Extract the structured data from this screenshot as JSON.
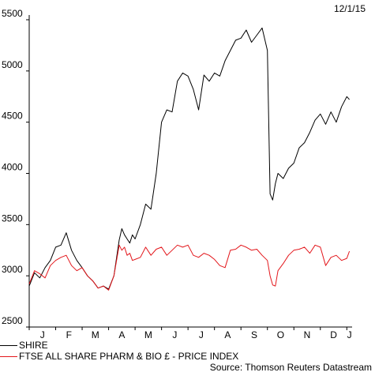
{
  "date_label": "12/1/15",
  "source": "Source: Thomson Reuters Datastream",
  "chart_data": {
    "type": "line",
    "x_tick_labels": [
      "J",
      "F",
      "M",
      "A",
      "M",
      "J",
      "J",
      "A",
      "S",
      "O",
      "N",
      "D",
      "J"
    ],
    "y_ticks": [
      2500,
      3000,
      3500,
      4000,
      4500,
      5000,
      5500
    ],
    "ylim": [
      2500,
      5500
    ],
    "grid": false,
    "legend_placement": "bottom-left",
    "x_unit": "months from start of year",
    "series": [
      {
        "name": "SHIRE",
        "color": "#000000",
        "x": [
          0,
          0.2,
          0.4,
          0.6,
          0.8,
          1.0,
          1.2,
          1.4,
          1.6,
          1.8,
          2.0,
          2.2,
          2.4,
          2.6,
          2.8,
          3.0,
          3.2,
          3.4,
          3.5,
          3.6,
          3.7,
          3.8,
          3.9,
          4.0,
          4.2,
          4.4,
          4.6,
          4.8,
          5.0,
          5.2,
          5.4,
          5.6,
          5.8,
          6.0,
          6.2,
          6.4,
          6.6,
          6.8,
          7.0,
          7.2,
          7.4,
          7.6,
          7.8,
          8.0,
          8.2,
          8.4,
          8.6,
          8.8,
          9.0,
          9.1,
          9.2,
          9.3,
          9.4,
          9.6,
          9.8,
          10.0,
          10.2,
          10.4,
          10.6,
          10.8,
          11.0,
          11.2,
          11.4,
          11.6,
          11.8,
          12.0,
          12.1
        ],
        "values": [
          2900,
          3030,
          2980,
          3080,
          3150,
          3280,
          3300,
          3420,
          3250,
          3150,
          3080,
          3000,
          2950,
          2880,
          2900,
          2870,
          3000,
          3350,
          3460,
          3400,
          3360,
          3320,
          3400,
          3360,
          3500,
          3700,
          3650,
          4000,
          4500,
          4620,
          4600,
          4900,
          4980,
          4950,
          4820,
          4620,
          4960,
          4900,
          4980,
          4950,
          5100,
          5200,
          5300,
          5320,
          5400,
          5280,
          5350,
          5420,
          5200,
          3800,
          3740,
          3900,
          4000,
          3950,
          4050,
          4100,
          4250,
          4300,
          4400,
          4520,
          4580,
          4480,
          4600,
          4500,
          4650,
          4750,
          4720
        ]
      },
      {
        "name": "FTSE ALL SHARE PHARM & BIO £ - PRICE INDEX",
        "color": "#e3161b",
        "x": [
          0,
          0.2,
          0.4,
          0.6,
          0.8,
          1.0,
          1.2,
          1.4,
          1.6,
          1.8,
          2.0,
          2.2,
          2.4,
          2.6,
          2.8,
          3.0,
          3.2,
          3.4,
          3.5,
          3.6,
          3.7,
          3.8,
          3.9,
          4.0,
          4.2,
          4.4,
          4.6,
          4.8,
          5.0,
          5.2,
          5.4,
          5.6,
          5.8,
          6.0,
          6.2,
          6.4,
          6.6,
          6.8,
          7.0,
          7.2,
          7.4,
          7.6,
          7.8,
          8.0,
          8.2,
          8.4,
          8.6,
          8.8,
          9.0,
          9.1,
          9.2,
          9.3,
          9.4,
          9.6,
          9.8,
          10.0,
          10.2,
          10.4,
          10.6,
          10.8,
          11.0,
          11.2,
          11.4,
          11.6,
          11.8,
          12.0,
          12.1
        ],
        "values": [
          2920,
          3050,
          3020,
          2980,
          3100,
          3150,
          3180,
          3200,
          3100,
          3050,
          3080,
          3000,
          2950,
          2880,
          2900,
          2860,
          3000,
          3300,
          3250,
          3280,
          3200,
          3220,
          3150,
          3160,
          3180,
          3280,
          3200,
          3260,
          3280,
          3200,
          3250,
          3300,
          3280,
          3300,
          3200,
          3180,
          3220,
          3200,
          3160,
          3100,
          3080,
          3250,
          3260,
          3300,
          3280,
          3250,
          3260,
          3200,
          3150,
          3000,
          2910,
          2900,
          3050,
          3120,
          3200,
          3250,
          3260,
          3280,
          3220,
          3300,
          3280,
          3100,
          3180,
          3200,
          3150,
          3170,
          3240
        ]
      }
    ]
  }
}
